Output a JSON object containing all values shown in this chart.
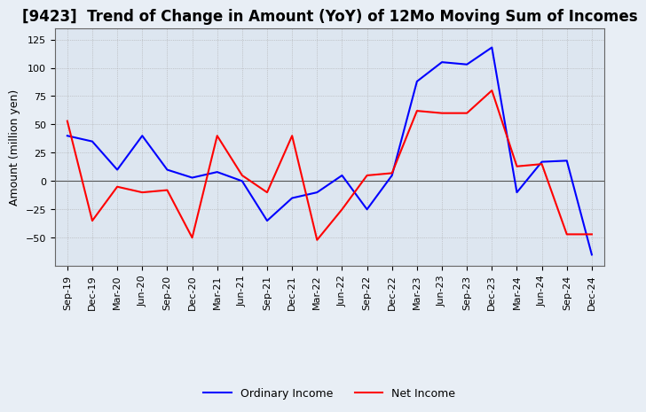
{
  "title": "[9423]  Trend of Change in Amount (YoY) of 12Mo Moving Sum of Incomes",
  "ylabel": "Amount (million yen)",
  "ylim": [
    -75,
    135
  ],
  "yticks": [
    -50,
    -25,
    0,
    25,
    50,
    75,
    100,
    125
  ],
  "x_labels": [
    "Sep-19",
    "Dec-19",
    "Mar-20",
    "Jun-20",
    "Sep-20",
    "Dec-20",
    "Mar-21",
    "Jun-21",
    "Sep-21",
    "Dec-21",
    "Mar-22",
    "Jun-22",
    "Sep-22",
    "Dec-22",
    "Mar-23",
    "Jun-23",
    "Sep-23",
    "Dec-23",
    "Mar-24",
    "Jun-24",
    "Sep-24",
    "Dec-24"
  ],
  "ordinary_income": [
    40,
    35,
    10,
    40,
    10,
    3,
    8,
    0,
    -35,
    -15,
    -10,
    5,
    -25,
    5,
    88,
    105,
    103,
    118,
    -10,
    17,
    18,
    -65
  ],
  "net_income": [
    53,
    -35,
    -5,
    -10,
    -8,
    -50,
    40,
    5,
    -10,
    40,
    -52,
    -25,
    5,
    7,
    62,
    60,
    60,
    80,
    13,
    15,
    -47,
    -47
  ],
  "ordinary_color": "#0000ff",
  "net_color": "#ff0000",
  "grid_color": "#aaaaaa",
  "background_color": "#e8eef5",
  "plot_bg_color": "#dde6f0",
  "title_fontsize": 12,
  "axis_label_fontsize": 9,
  "tick_fontsize": 8,
  "line_width": 1.5,
  "legend_fontsize": 9
}
